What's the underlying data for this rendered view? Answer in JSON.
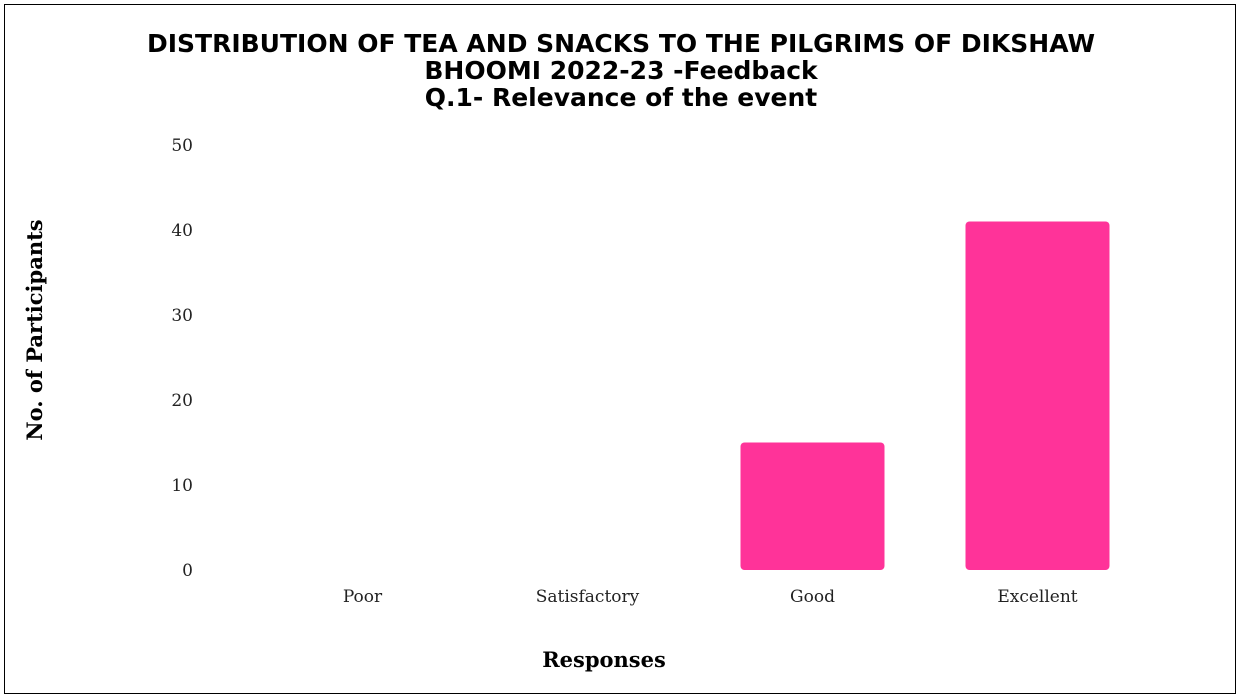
{
  "chart_data": {
    "type": "bar",
    "title": [
      "DISTRIBUTION OF TEA AND SNACKS TO THE PILGRIMS OF DIKSHAW",
      "BHOOMI 2022-23  -Feedback",
      "Q.1- Relevance of the event"
    ],
    "categories": [
      "Poor",
      "Satisfactory",
      "Good",
      "Excellent"
    ],
    "values": [
      0,
      0,
      15,
      41
    ],
    "xlabel": "Responses",
    "ylabel": "No. of Participants",
    "ylim": [
      0,
      50
    ],
    "yticks": [
      0,
      10,
      20,
      30,
      40,
      50
    ],
    "grid": false,
    "bar_color": "#ff3399"
  }
}
